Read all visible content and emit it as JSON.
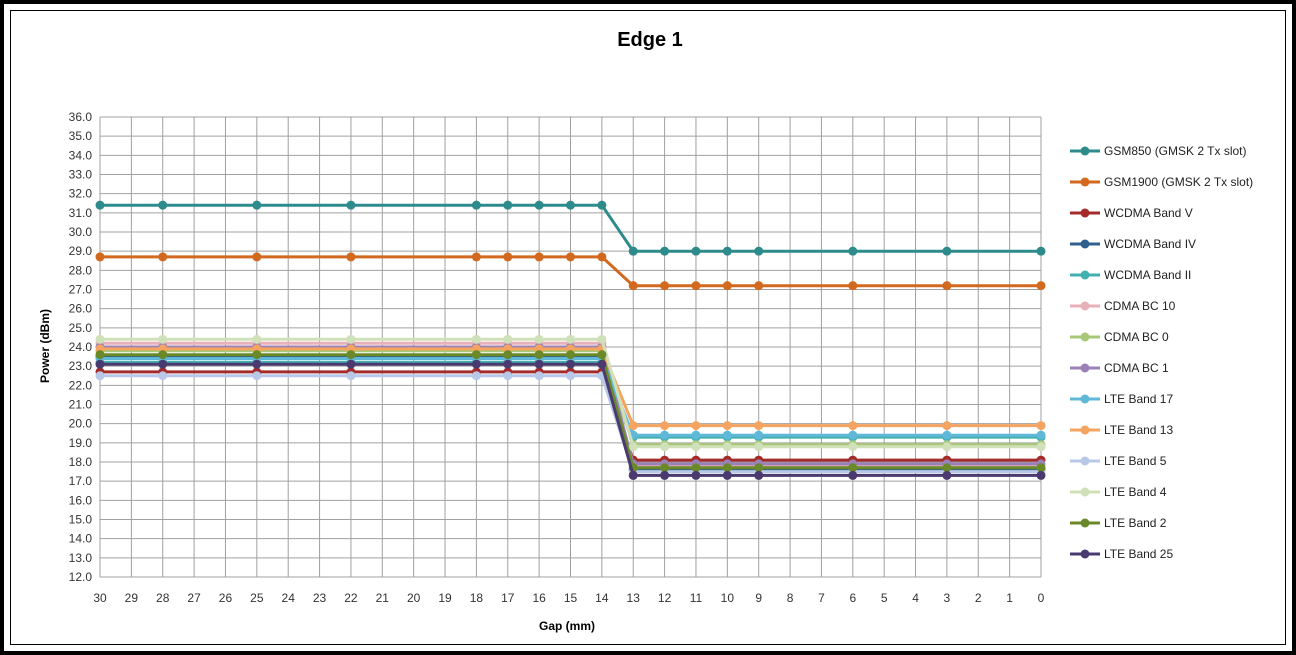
{
  "chart_data": {
    "type": "line",
    "title": "Edge 1",
    "xlabel": "Gap (mm)",
    "ylabel": "Power (dBm)",
    "x_categories": [
      30,
      29,
      28,
      27,
      26,
      25,
      24,
      23,
      22,
      21,
      20,
      19,
      18,
      17,
      16,
      15,
      14,
      13,
      12,
      11,
      10,
      9,
      8,
      7,
      6,
      5,
      4,
      3,
      2,
      1,
      0
    ],
    "ylim": [
      12.0,
      36.0
    ],
    "ystep": 1.0,
    "grid": true,
    "legend_position": "right",
    "x": [
      30,
      28,
      25,
      22,
      18,
      17,
      16,
      15,
      14,
      13,
      12,
      11,
      10,
      9,
      6,
      3,
      0
    ],
    "series": [
      {
        "name": "GSM850 (GMSK 2 Tx slot)",
        "color": "#2e8b8b",
        "values": [
          31.4,
          31.4,
          31.4,
          31.4,
          31.4,
          31.4,
          31.4,
          31.4,
          31.4,
          29.0,
          29.0,
          29.0,
          29.0,
          29.0,
          29.0,
          29.0,
          29.0
        ]
      },
      {
        "name": "GSM1900 (GMSK 2 Tx slot)",
        "color": "#d2691e",
        "values": [
          28.7,
          28.7,
          28.7,
          28.7,
          28.7,
          28.7,
          28.7,
          28.7,
          28.7,
          27.2,
          27.2,
          27.2,
          27.2,
          27.2,
          27.2,
          27.2,
          27.2
        ]
      },
      {
        "name": "WCDMA Band V",
        "color": "#a52a2a",
        "values": [
          22.7,
          22.7,
          22.7,
          22.7,
          22.7,
          22.7,
          22.7,
          22.7,
          22.7,
          18.1,
          18.1,
          18.1,
          18.1,
          18.1,
          18.1,
          18.1,
          18.1
        ]
      },
      {
        "name": "WCDMA Band IV",
        "color": "#2f5f8f",
        "values": [
          23.5,
          23.5,
          23.5,
          23.5,
          23.5,
          23.5,
          23.5,
          23.5,
          23.5,
          17.6,
          17.6,
          17.6,
          17.6,
          17.6,
          17.6,
          17.6,
          17.6
        ]
      },
      {
        "name": "WCDMA Band II",
        "color": "#40b0b0",
        "values": [
          23.2,
          23.2,
          23.2,
          23.2,
          23.2,
          23.2,
          23.2,
          23.2,
          23.2,
          19.3,
          19.3,
          19.3,
          19.3,
          19.3,
          19.3,
          19.3,
          19.3
        ]
      },
      {
        "name": "CDMA BC 10",
        "color": "#e8b0b8",
        "values": [
          24.2,
          24.2,
          24.2,
          24.2,
          24.2,
          24.2,
          24.2,
          24.2,
          24.2,
          17.8,
          17.8,
          17.8,
          17.8,
          17.8,
          17.8,
          17.8,
          17.8
        ]
      },
      {
        "name": "CDMA BC 0",
        "color": "#a8c878",
        "values": [
          23.8,
          23.8,
          23.8,
          23.8,
          23.8,
          23.8,
          23.8,
          23.8,
          23.8,
          18.9,
          18.9,
          18.9,
          18.9,
          18.9,
          18.9,
          18.9,
          18.9
        ]
      },
      {
        "name": "CDMA BC 1",
        "color": "#9a82b8",
        "values": [
          24.0,
          24.0,
          24.0,
          24.0,
          24.0,
          24.0,
          24.0,
          24.0,
          24.0,
          17.9,
          17.9,
          17.9,
          17.9,
          17.9,
          17.9,
          17.9,
          17.9
        ]
      },
      {
        "name": "LTE Band 17",
        "color": "#60b8d8",
        "values": [
          23.4,
          23.4,
          23.4,
          23.4,
          23.4,
          23.4,
          23.4,
          23.4,
          23.4,
          19.4,
          19.4,
          19.4,
          19.4,
          19.4,
          19.4,
          19.4,
          19.4
        ]
      },
      {
        "name": "LTE Band 13",
        "color": "#f4a460",
        "values": [
          23.9,
          23.9,
          23.9,
          23.9,
          23.9,
          23.9,
          23.9,
          23.9,
          23.9,
          19.9,
          19.9,
          19.9,
          19.9,
          19.9,
          19.9,
          19.9,
          19.9
        ]
      },
      {
        "name": "LTE Band 5",
        "color": "#b8c8e8",
        "values": [
          22.5,
          22.5,
          22.5,
          22.5,
          22.5,
          22.5,
          22.5,
          22.5,
          22.5,
          17.5,
          17.5,
          17.5,
          17.5,
          17.5,
          17.5,
          17.5,
          17.5
        ]
      },
      {
        "name": "LTE Band 4",
        "color": "#d0e0b8",
        "values": [
          24.4,
          24.4,
          24.4,
          24.4,
          24.4,
          24.4,
          24.4,
          24.4,
          24.4,
          18.8,
          18.8,
          18.8,
          18.8,
          18.8,
          18.8,
          18.8,
          18.8
        ]
      },
      {
        "name": "LTE Band 2",
        "color": "#6a8a2a",
        "values": [
          23.6,
          23.6,
          23.6,
          23.6,
          23.6,
          23.6,
          23.6,
          23.6,
          23.6,
          17.7,
          17.7,
          17.7,
          17.7,
          17.7,
          17.7,
          17.7,
          17.7
        ]
      },
      {
        "name": "LTE Band 25",
        "color": "#4a3a70",
        "values": [
          23.1,
          23.1,
          23.1,
          23.1,
          23.1,
          23.1,
          23.1,
          23.1,
          23.1,
          17.3,
          17.3,
          17.3,
          17.3,
          17.3,
          17.3,
          17.3,
          17.3
        ]
      }
    ]
  }
}
